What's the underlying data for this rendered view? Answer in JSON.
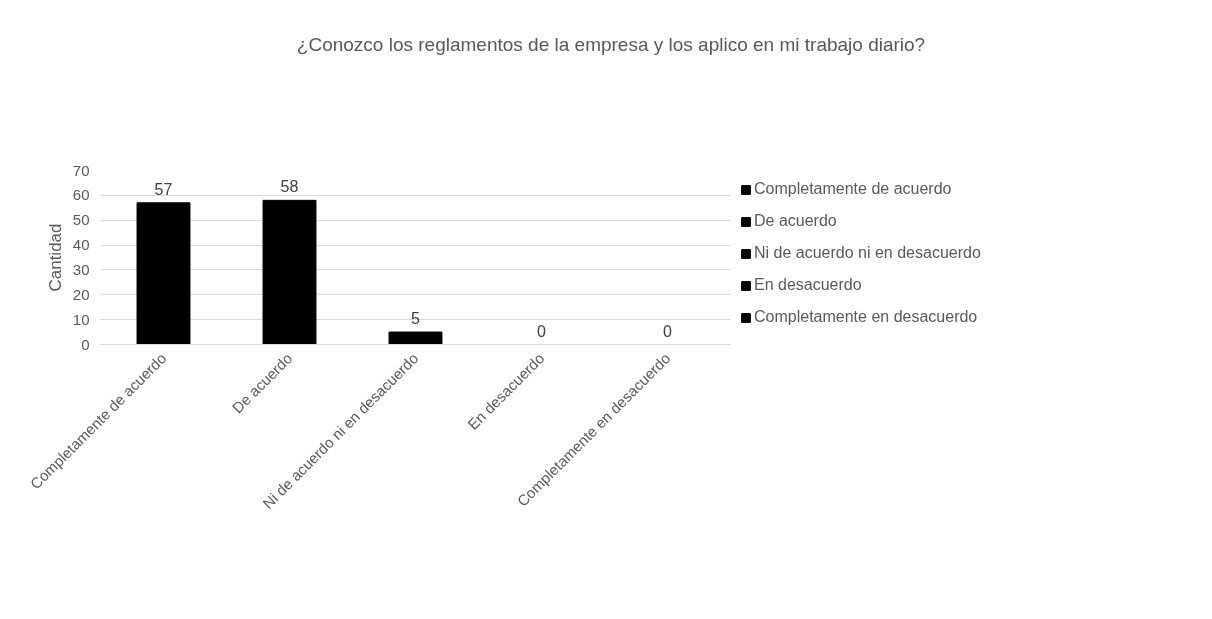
{
  "chart_data": {
    "type": "bar",
    "title": "¿Conozco los reglamentos de la empresa y los aplico en mi trabajo diario?",
    "ylabel": "Cantidad",
    "categories": [
      "Completamente de acuerdo",
      "De acuerdo",
      "Ni de acuerdo ni en desacuerdo",
      "En desacuerdo",
      "Completamente en desacuerdo"
    ],
    "series": [
      {
        "name": "Completamente de acuerdo",
        "color": "#000000",
        "values": [
          57,
          null,
          null,
          null,
          null
        ]
      },
      {
        "name": "De acuerdo",
        "color": "#000000",
        "values": [
          null,
          58,
          null,
          null,
          null
        ]
      },
      {
        "name": "Ni de acuerdo ni en desacuerdo",
        "color": "#000000",
        "values": [
          null,
          null,
          5,
          null,
          null
        ]
      },
      {
        "name": "En desacuerdo",
        "color": "#000000",
        "values": [
          null,
          null,
          null,
          0,
          null
        ]
      },
      {
        "name": "Completamente en desacuerdo",
        "color": "#000000",
        "values": [
          null,
          null,
          null,
          null,
          0
        ]
      }
    ],
    "ylim": [
      0,
      70
    ],
    "yticks": [
      0,
      10,
      20,
      30,
      40,
      50,
      60,
      70
    ],
    "grid": "y",
    "legend": "right",
    "data_labels": true
  }
}
